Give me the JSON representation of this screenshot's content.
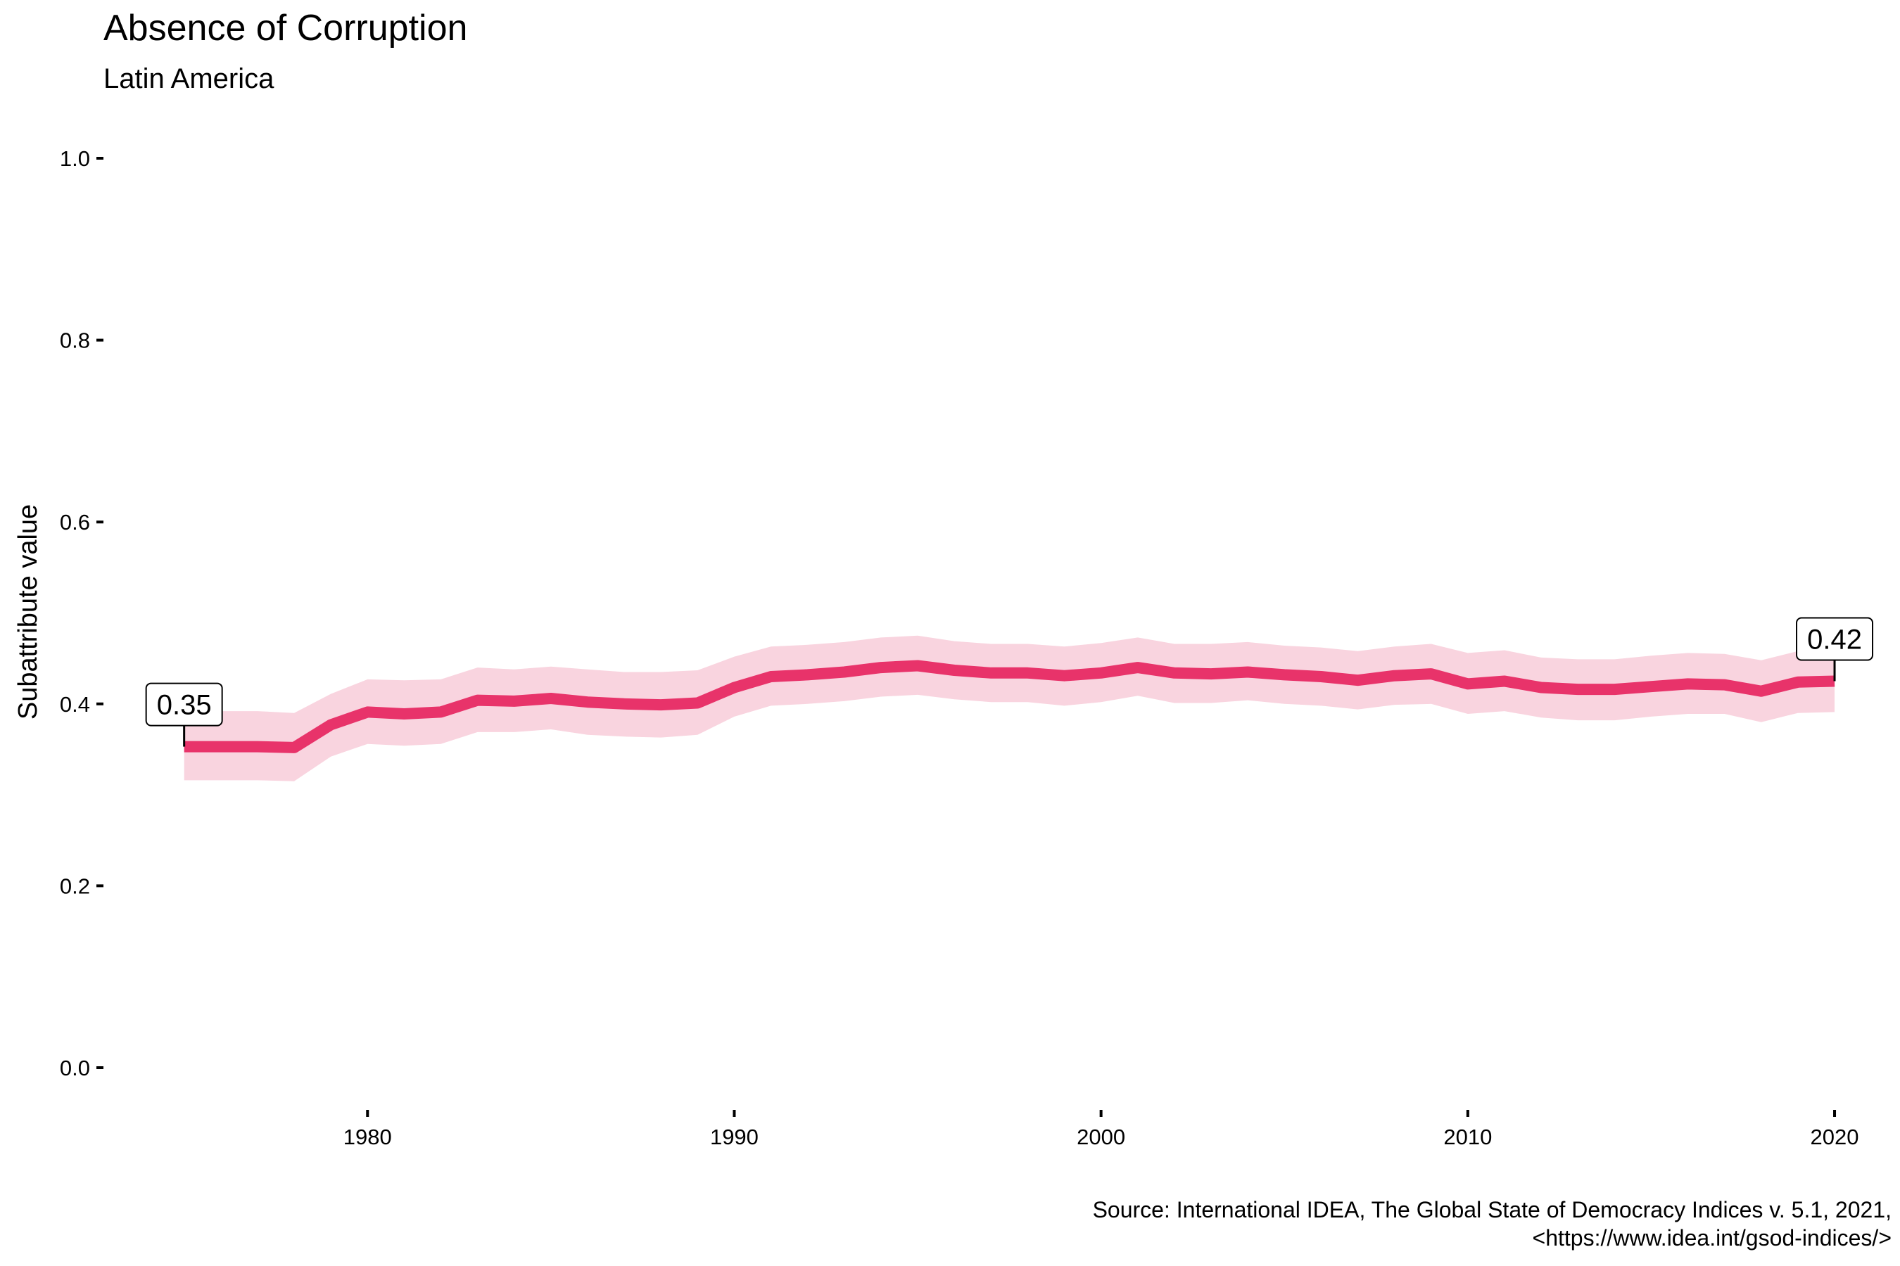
{
  "chart_data": {
    "type": "line",
    "title": "Absence of Corruption",
    "subtitle": "Latin America",
    "ylabel": "Subattribute value",
    "xlabel": "",
    "caption": [
      "Source: International IDEA, The Global State of Democracy Indices v. 5.1, 2021,",
      "<https://www.idea.int/gsod-indices/>"
    ],
    "xlim": [
      1972.8,
      2021.4
    ],
    "ylim": [
      0,
      1
    ],
    "x_ticks": [
      1980,
      1990,
      2000,
      2010,
      2020
    ],
    "y_ticks": [
      0.0,
      0.2,
      0.4,
      0.6,
      0.8,
      1.0
    ],
    "y_tick_labels": [
      "0.0",
      "0.2",
      "0.4",
      "0.6",
      "0.8",
      "1.0"
    ],
    "grid": false,
    "line_color": "#e8336a",
    "band_color": "#f9d4df",
    "x": [
      1975,
      1976,
      1977,
      1978,
      1979,
      1980,
      1981,
      1982,
      1983,
      1984,
      1985,
      1986,
      1987,
      1988,
      1989,
      1990,
      1991,
      1992,
      1993,
      1994,
      1995,
      1996,
      1997,
      1998,
      1999,
      2000,
      2001,
      2002,
      2003,
      2004,
      2005,
      2006,
      2007,
      2008,
      2009,
      2010,
      2011,
      2012,
      2013,
      2014,
      2015,
      2016,
      2017,
      2018,
      2019,
      2020
    ],
    "series": [
      {
        "values": [
          0.353,
          0.353,
          0.353,
          0.352,
          0.377,
          0.391,
          0.389,
          0.391,
          0.404,
          0.403,
          0.406,
          0.402,
          0.4,
          0.399,
          0.401,
          0.418,
          0.43,
          0.432,
          0.435,
          0.44,
          0.442,
          0.437,
          0.434,
          0.434,
          0.431,
          0.434,
          0.44,
          0.434,
          0.433,
          0.435,
          0.432,
          0.43,
          0.426,
          0.431,
          0.433,
          0.422,
          0.425,
          0.418,
          0.416,
          0.416,
          0.419,
          0.422,
          0.421,
          0.414,
          0.424,
          0.425
        ],
        "lower": [
          0.316,
          0.316,
          0.316,
          0.315,
          0.342,
          0.356,
          0.354,
          0.356,
          0.369,
          0.369,
          0.372,
          0.366,
          0.364,
          0.363,
          0.366,
          0.386,
          0.398,
          0.4,
          0.403,
          0.408,
          0.41,
          0.405,
          0.402,
          0.402,
          0.398,
          0.402,
          0.409,
          0.401,
          0.401,
          0.404,
          0.4,
          0.398,
          0.394,
          0.399,
          0.4,
          0.389,
          0.392,
          0.385,
          0.382,
          0.382,
          0.386,
          0.389,
          0.389,
          0.38,
          0.39,
          0.391
        ],
        "upper": [
          0.392,
          0.392,
          0.392,
          0.39,
          0.411,
          0.427,
          0.426,
          0.427,
          0.44,
          0.438,
          0.441,
          0.438,
          0.435,
          0.435,
          0.437,
          0.452,
          0.463,
          0.465,
          0.468,
          0.473,
          0.475,
          0.469,
          0.466,
          0.466,
          0.463,
          0.467,
          0.473,
          0.466,
          0.466,
          0.468,
          0.464,
          0.462,
          0.458,
          0.463,
          0.466,
          0.456,
          0.459,
          0.451,
          0.449,
          0.449,
          0.453,
          0.456,
          0.455,
          0.448,
          0.458,
          0.458
        ]
      }
    ],
    "end_labels": [
      {
        "x": 1975,
        "y": 0.353,
        "text": "0.35"
      },
      {
        "x": 2020,
        "y": 0.425,
        "text": "0.42"
      }
    ]
  }
}
